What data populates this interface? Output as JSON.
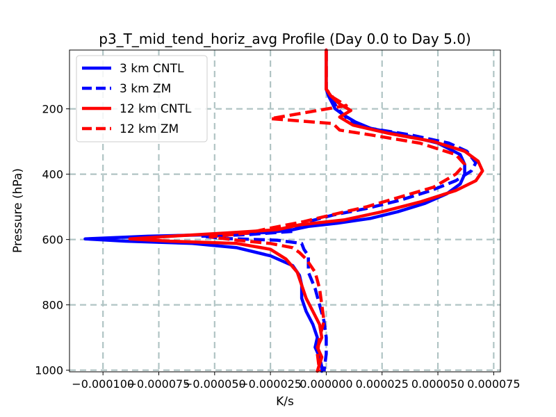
{
  "chart_data": {
    "type": "line",
    "title": "p3_T_mid_tend_horiz_avg Profile (Day 0.0 to Day 5.0)",
    "xlabel": "K/s",
    "ylabel": "Pressure (hPa)",
    "xlim": [
      -0.000115,
      7.8e-05
    ],
    "ylim": [
      1005,
      20
    ],
    "y_inverted": true,
    "grid": true,
    "legend_position": "upper-left",
    "xticks": [
      -0.0001,
      -7.5e-05,
      -5e-05,
      -2.5e-05,
      0.0,
      2.5e-05,
      5e-05,
      7.5e-05
    ],
    "xtick_labels": [
      "−0.000100",
      "−0.000075",
      "−0.000050",
      "−0.000025",
      "0.000000",
      "0.000025",
      "0.000050",
      "0.000075"
    ],
    "yticks": [
      200,
      400,
      600,
      800,
      1000
    ],
    "ytick_labels": [
      "200",
      "400",
      "600",
      "800",
      "1000"
    ],
    "series": [
      {
        "name": "3 km CNTL",
        "color": "#0000ff",
        "style": "solid",
        "points": [
          [
            0.0,
            20
          ],
          [
            0.0,
            100
          ],
          [
            0.0,
            140
          ],
          [
            1e-06,
            160
          ],
          [
            4e-06,
            200
          ],
          [
            8e-06,
            220
          ],
          [
            1.3e-05,
            240
          ],
          [
            2e-05,
            260
          ],
          [
            3.5e-05,
            280
          ],
          [
            5e-05,
            305
          ],
          [
            6e-05,
            340
          ],
          [
            6.2e-05,
            370
          ],
          [
            6.2e-05,
            400
          ],
          [
            6e-05,
            430
          ],
          [
            5.4e-05,
            460
          ],
          [
            4.4e-05,
            490
          ],
          [
            3.2e-05,
            515
          ],
          [
            2e-05,
            535
          ],
          [
            5e-06,
            550
          ],
          [
            -8e-06,
            560
          ],
          [
            -1.5e-05,
            570
          ],
          [
            -2.5e-05,
            578
          ],
          [
            -5e-05,
            585
          ],
          [
            -8e-05,
            590
          ],
          [
            -0.000108,
            598
          ],
          [
            -9e-05,
            605
          ],
          [
            -6e-05,
            612
          ],
          [
            -4e-05,
            625
          ],
          [
            -2.5e-05,
            650
          ],
          [
            -1.5e-05,
            680
          ],
          [
            -1.2e-05,
            710
          ],
          [
            -1.1e-05,
            740
          ],
          [
            -1.1e-05,
            780
          ],
          [
            -9e-06,
            820
          ],
          [
            -6e-06,
            860
          ],
          [
            -4e-06,
            900
          ],
          [
            -5e-06,
            930
          ],
          [
            -3e-06,
            960
          ],
          [
            -2e-06,
            990
          ],
          [
            -2e-06,
            1003
          ]
        ]
      },
      {
        "name": "3 km ZM",
        "color": "#0000ff",
        "style": "dashed",
        "points": [
          [
            0.0,
            20
          ],
          [
            0.0,
            100
          ],
          [
            0.0,
            140
          ],
          [
            2e-06,
            160
          ],
          [
            5e-06,
            200
          ],
          [
            1.1e-05,
            240
          ],
          [
            2e-05,
            260
          ],
          [
            3.8e-05,
            280
          ],
          [
            5.5e-05,
            305
          ],
          [
            6.3e-05,
            330
          ],
          [
            6.7e-05,
            365
          ],
          [
            6.5e-05,
            390
          ],
          [
            5.8e-05,
            420
          ],
          [
            4.7e-05,
            450
          ],
          [
            3.3e-05,
            480
          ],
          [
            1.8e-05,
            505
          ],
          [
            3e-06,
            525
          ],
          [
            -8e-06,
            545
          ],
          [
            -1.3e-05,
            560
          ],
          [
            -1.5e-05,
            575
          ],
          [
            -3.5e-05,
            585
          ],
          [
            -5.6e-05,
            590
          ],
          [
            -4.5e-05,
            597
          ],
          [
            -2.2e-05,
            602
          ],
          [
            -1.1e-05,
            612
          ],
          [
            -1e-05,
            630
          ],
          [
            -8e-06,
            650
          ],
          [
            -8e-06,
            700
          ],
          [
            -5e-06,
            750
          ],
          [
            -3e-06,
            800
          ],
          [
            -1e-06,
            850
          ],
          [
            0.0,
            900
          ],
          [
            0.0,
            950
          ],
          [
            -1e-06,
            1003
          ]
        ]
      },
      {
        "name": "12 km CNTL",
        "color": "#ff0000",
        "style": "solid",
        "points": [
          [
            0.0,
            20
          ],
          [
            0.0,
            100
          ],
          [
            0.0,
            140
          ],
          [
            2e-06,
            160
          ],
          [
            6e-06,
            185
          ],
          [
            1.1e-05,
            205
          ],
          [
            6e-06,
            225
          ],
          [
            1.2e-05,
            250
          ],
          [
            2.8e-05,
            275
          ],
          [
            4.8e-05,
            300
          ],
          [
            6.2e-05,
            330
          ],
          [
            6.8e-05,
            360
          ],
          [
            7e-05,
            390
          ],
          [
            6.7e-05,
            420
          ],
          [
            5.8e-05,
            450
          ],
          [
            4.2e-05,
            485
          ],
          [
            2.5e-05,
            515
          ],
          [
            8e-06,
            540
          ],
          [
            -1.2e-05,
            555
          ],
          [
            -2.2e-05,
            570
          ],
          [
            -4.5e-05,
            580
          ],
          [
            -6.5e-05,
            588
          ],
          [
            -8.8e-05,
            598
          ],
          [
            -7e-05,
            605
          ],
          [
            -4e-05,
            612
          ],
          [
            -2.5e-05,
            630
          ],
          [
            -1.8e-05,
            660
          ],
          [
            -1.3e-05,
            700
          ],
          [
            -1.1e-05,
            740
          ],
          [
            -9e-06,
            780
          ],
          [
            -6e-06,
            820
          ],
          [
            -3e-06,
            860
          ],
          [
            -2e-06,
            900
          ],
          [
            -4e-06,
            930
          ],
          [
            -2e-06,
            960
          ],
          [
            -4e-06,
            1003
          ]
        ]
      },
      {
        "name": "12 km ZM",
        "color": "#ff0000",
        "style": "dashed",
        "points": [
          [
            0.0,
            20
          ],
          [
            0.0,
            100
          ],
          [
            0.0,
            140
          ],
          [
            3e-06,
            165
          ],
          [
            9e-06,
            190
          ],
          [
            -2.5e-05,
            230
          ],
          [
            3e-06,
            245
          ],
          [
            6e-06,
            265
          ],
          [
            2e-05,
            280
          ],
          [
            4.2e-05,
            305
          ],
          [
            5.8e-05,
            340
          ],
          [
            6.2e-05,
            370
          ],
          [
            5.8e-05,
            400
          ],
          [
            4.8e-05,
            440
          ],
          [
            3.3e-05,
            470
          ],
          [
            1.8e-05,
            500
          ],
          [
            2e-06,
            525
          ],
          [
            -1e-05,
            545
          ],
          [
            -2.5e-05,
            565
          ],
          [
            -3.5e-05,
            580
          ],
          [
            -5.2e-05,
            592
          ],
          [
            -4e-05,
            602
          ],
          [
            -2.5e-05,
            612
          ],
          [
            -1.5e-05,
            625
          ],
          [
            -1.2e-05,
            640
          ],
          [
            -9e-06,
            660
          ],
          [
            -5e-06,
            700
          ],
          [
            -3e-06,
            750
          ],
          [
            -2e-06,
            800
          ],
          [
            -1e-06,
            850
          ],
          [
            -3e-06,
            900
          ],
          [
            -4e-06,
            950
          ],
          [
            -3e-06,
            1003
          ]
        ]
      }
    ]
  }
}
